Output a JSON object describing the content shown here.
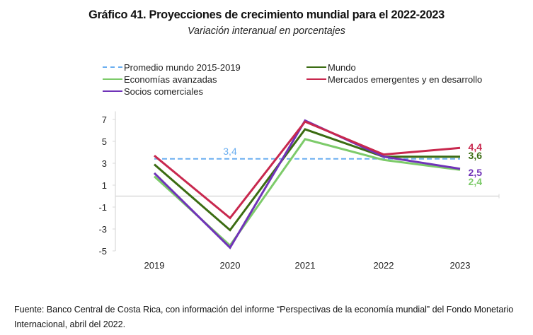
{
  "chart_data": {
    "type": "line",
    "title": "Gráfico 41. Proyecciones de crecimiento mundial para el 2022-2023",
    "subtitle": "Variación interanual en porcentajes",
    "xlabel": "",
    "ylabel": "",
    "x": [
      "2019",
      "2020",
      "2021",
      "2022",
      "2023"
    ],
    "ylim": [
      -5,
      8
    ],
    "yticks": [
      7,
      5,
      3,
      1,
      -1,
      -3,
      -5
    ],
    "ytick_labels": [
      "7",
      "5",
      "3",
      "1",
      "-1",
      "-3",
      "-5"
    ],
    "grid": false,
    "legend_position": "top",
    "series": [
      {
        "name": "Promedio mundo 2015-2019",
        "color": "#6AAEF0",
        "style": "dashed",
        "values": [
          3.4,
          3.4,
          3.4,
          3.4,
          3.4
        ],
        "annotation": {
          "text": "3,4",
          "index": 1
        }
      },
      {
        "name": "Mundo",
        "color": "#3B6C12",
        "style": "solid",
        "values": [
          2.9,
          -3.1,
          6.1,
          3.6,
          3.6
        ],
        "end_label": "3,6"
      },
      {
        "name": "Economías avanzadas",
        "color": "#7DCB6A",
        "style": "solid",
        "values": [
          1.8,
          -4.5,
          5.2,
          3.3,
          2.4
        ],
        "end_label": "2,4"
      },
      {
        "name": "Mercados emergentes y en desarrollo",
        "color": "#C8284E",
        "style": "solid",
        "values": [
          3.7,
          -2.0,
          6.8,
          3.8,
          4.4
        ],
        "end_label": "4,4"
      },
      {
        "name": "Socios comerciales",
        "color": "#7033B8",
        "style": "solid",
        "values": [
          2.1,
          -4.7,
          6.9,
          3.6,
          2.5
        ],
        "end_label": "2,5"
      }
    ]
  },
  "legend": [
    {
      "label": "Promedio mundo 2015-2019",
      "color": "#6AAEF0",
      "style": "dashed"
    },
    {
      "label": "Mundo",
      "color": "#3B6C12",
      "style": "solid"
    },
    {
      "label": "Economías avanzadas",
      "color": "#7DCB6A",
      "style": "solid"
    },
    {
      "label": "Mercados emergentes y en desarrollo",
      "color": "#C8284E",
      "style": "solid"
    },
    {
      "label": "Socios comerciales",
      "color": "#7033B8",
      "style": "solid"
    }
  ],
  "footer": "Fuente: Banco Central de Costa Rica, con información del informe “Perspectivas de la economía mundial” del Fondo Monetario Internacional, abril del 2022."
}
